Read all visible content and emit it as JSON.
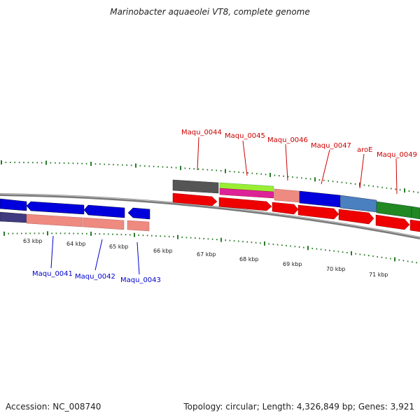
{
  "title": "Marinobacter aquaeolei VT8, complete genome",
  "footer": {
    "accession_label": "Accession:",
    "accession": "NC_008740",
    "topology_label": "Topology:",
    "topology": "circular",
    "length_label": "Length:",
    "length": "4,326,849 bp",
    "genes_label": "Genes:",
    "genes": "3,921"
  },
  "ruler": {
    "unit": "kbp",
    "labels": [
      "63 kbp",
      "64 kbp",
      "65 kbp",
      "66 kbp",
      "67 kbp",
      "68 kbp",
      "69 kbp",
      "70 kbp",
      "71 kbp"
    ]
  },
  "genes_top_labels": [
    "Maqu_0044",
    "Maqu_0045",
    "Maqu_0046",
    "Maqu_0047",
    "aroE",
    "Maqu_0049"
  ],
  "genes_bottom_labels": [
    "Maqu_0041",
    "Maqu_0042",
    "Maqu_0043"
  ],
  "colors": {
    "top_label": "#cc0000",
    "bottom_label": "#0000cc",
    "tick": "#2a7a2a",
    "backbone": "#7a7a7a",
    "blue": "#0000dd",
    "red": "#ee0000",
    "salmon": "#ee8a80",
    "grey": "#555555",
    "green": "#228822",
    "steel": "#4a80c0",
    "lime": "#99ee33",
    "magenta": "#dd2299",
    "navy": "#403a80"
  }
}
